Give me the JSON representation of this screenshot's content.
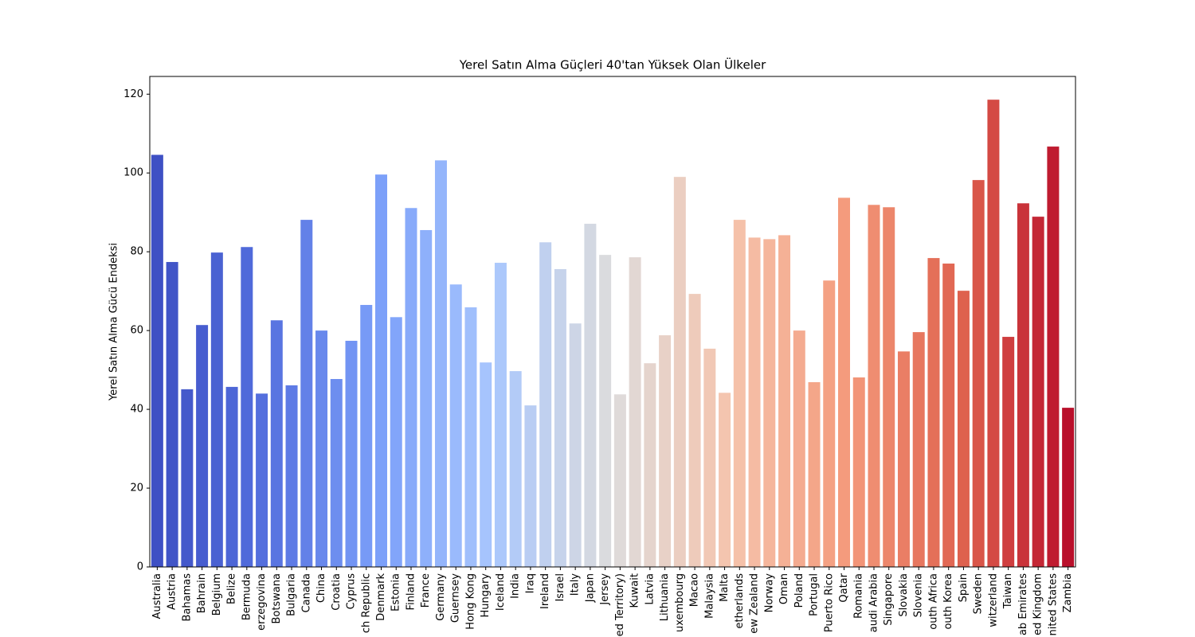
{
  "chart_data": {
    "type": "bar",
    "title": "Yerel Satın Alma Güçleri  40'tan Yüksek Olan Ülkeler",
    "y_label": "Yerel Satın Alma Gücü Endeksi",
    "categories": [
      "Australia",
      "Austria",
      "Bahamas",
      "Bahrain",
      "Belgium",
      "Belize",
      "Bermuda",
      "erzegovina",
      "Botswana",
      "Bulgaria",
      "Canada",
      "China",
      "Croatia",
      "Cyprus",
      "ch Republic",
      "Denmark",
      "Estonia",
      "Finland",
      "France",
      "Germany",
      "Guernsey",
      "Hong Kong",
      "Hungary",
      "Iceland",
      "India",
      "Iraq",
      "Ireland",
      "Israel",
      "Italy",
      "Japan",
      "Jersey",
      "ed Territory)",
      "Kuwait",
      "Latvia",
      "Lithuania",
      "uxembourg",
      "Macao",
      "Malaysia",
      "Malta",
      "etherlands",
      "ew Zealand",
      "Norway",
      "Oman",
      "Poland",
      "Portugal",
      "Puerto Rico",
      "Qatar",
      "Romania",
      "audi Arabia",
      "Singapore",
      "Slovakia",
      "Slovenia",
      "outh Africa",
      "outh Korea",
      "Spain",
      "Sweden",
      "witzerland",
      "Taiwan",
      "ab Emirates",
      "ed Kingdom",
      "nited States",
      "Zambia"
    ],
    "values": [
      104.6,
      77.4,
      45.1,
      61.4,
      79.8,
      45.7,
      81.2,
      44.0,
      62.6,
      46.1,
      88.1,
      60.0,
      47.7,
      57.4,
      66.5,
      99.6,
      63.4,
      91.1,
      85.5,
      103.2,
      71.7,
      65.9,
      51.9,
      77.2,
      49.7,
      41.0,
      82.4,
      75.6,
      61.8,
      87.1,
      79.2,
      43.8,
      78.6,
      51.7,
      58.8,
      99.0,
      69.3,
      55.4,
      44.2,
      88.1,
      83.6,
      83.2,
      84.2,
      60.0,
      46.9,
      72.7,
      93.7,
      48.1,
      91.9,
      91.3,
      54.7,
      59.6,
      78.4,
      77.0,
      70.1,
      98.2,
      118.6,
      58.4,
      92.3,
      88.9,
      106.7,
      40.4
    ],
    "colormap": [
      "#3b4cc0",
      "#536edd",
      "#7b9ff9",
      "#aac7fd",
      "#dddcdc",
      "#f5c4ad",
      "#f49a7b",
      "#de604d",
      "#b40426"
    ],
    "ylim": [
      0,
      124.5
    ],
    "yticks": [
      0,
      20,
      40,
      60,
      80,
      100,
      120
    ],
    "grid": false
  }
}
